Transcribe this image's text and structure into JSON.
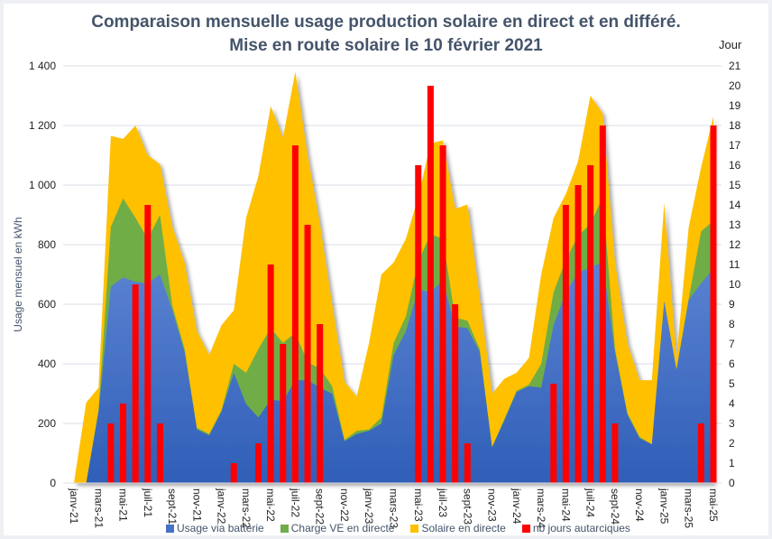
{
  "chart_data": {
    "type": "area",
    "title": "Comparaison mensuelle usage production solaire en direct et en différé.",
    "subtitle": "Mise en route solaire le 10 février 2021",
    "ylabel": "Usage mensuel en kWh",
    "y2label": "Jour",
    "ylim": [
      0,
      1400
    ],
    "y2lim": [
      0,
      21
    ],
    "yticks": [
      "0",
      "200",
      "400",
      "600",
      "800",
      "1 000",
      "1 200",
      "1 400"
    ],
    "y2ticks": [
      "0",
      "1",
      "2",
      "3",
      "4",
      "5",
      "6",
      "7",
      "8",
      "9",
      "10",
      "11",
      "12",
      "13",
      "14",
      "15",
      "16",
      "17",
      "18",
      "19",
      "20",
      "21"
    ],
    "grid": true,
    "legend_position": "bottom",
    "categories": [
      "janv-21",
      "févr-21",
      "mars-21",
      "avr-21",
      "mai-21",
      "juin-21",
      "juil-21",
      "août-21",
      "sept-21",
      "oct-21",
      "nov-21",
      "déc-21",
      "janv-22",
      "févr-22",
      "mars-22",
      "avr-22",
      "mai-22",
      "juin-22",
      "juil-22",
      "août-22",
      "sept-22",
      "oct-22",
      "nov-22",
      "déc-22",
      "janv-23",
      "févr-23",
      "mars-23",
      "avr-23",
      "mai-23",
      "juin-23",
      "juil-23",
      "août-23",
      "sept-23",
      "oct-23",
      "nov-23",
      "déc-23",
      "janv-24",
      "févr-24",
      "mars-24",
      "avr-24",
      "mai-24",
      "juin-24",
      "juil-24",
      "août-24",
      "sept-24",
      "oct-24",
      "nov-24",
      "déc-24",
      "janv-25",
      "févr-25",
      "mars-25",
      "avr-25",
      "mai-25"
    ],
    "tick_labels_shown": [
      "janv-21",
      "mars-21",
      "mai-21",
      "juil-21",
      "sept-21",
      "nov-21",
      "janv-22",
      "mars-22",
      "mai-22",
      "juil-22",
      "sept-22",
      "nov-22",
      "janv-23",
      "mars-23",
      "mai-23",
      "juil-23",
      "sept-23",
      "nov-23",
      "janv-24",
      "mars-24",
      "mai-24",
      "juil-24",
      "sept-24",
      "nov-24",
      "janv-25",
      "mars-25",
      "mai-25"
    ],
    "series": [
      {
        "name": "Usage via batterie",
        "type": "area",
        "axis": "left",
        "color": "#4472c4",
        "values": [
          0,
          0,
          240,
          660,
          690,
          675,
          670,
          700,
          580,
          440,
          180,
          160,
          240,
          370,
          265,
          220,
          280,
          275,
          345,
          345,
          320,
          300,
          140,
          165,
          175,
          200,
          430,
          510,
          650,
          640,
          680,
          525,
          520,
          440,
          120,
          210,
          305,
          325,
          320,
          530,
          640,
          705,
          725,
          740,
          440,
          230,
          150,
          130,
          610,
          380,
          615,
          670,
          720
        ]
      },
      {
        "name": "Charge VE en directe",
        "type": "area",
        "axis": "left",
        "color": "#70ad47",
        "values": [
          0,
          0,
          5,
          200,
          265,
          215,
          150,
          200,
          15,
          10,
          5,
          5,
          5,
          30,
          105,
          230,
          240,
          195,
          160,
          60,
          65,
          25,
          5,
          10,
          5,
          20,
          40,
          50,
          95,
          195,
          140,
          30,
          25,
          10,
          0,
          5,
          5,
          5,
          80,
          110,
          110,
          125,
          145,
          220,
          10,
          5,
          5,
          0,
          0,
          0,
          5,
          175,
          160
        ]
      },
      {
        "name": "Solaire en directe",
        "type": "area",
        "axis": "left",
        "color": "#ffc000",
        "values": [
          0,
          270,
          75,
          305,
          200,
          310,
          280,
          170,
          265,
          290,
          325,
          265,
          285,
          180,
          520,
          580,
          745,
          690,
          875,
          695,
          485,
          275,
          195,
          115,
          290,
          480,
          270,
          260,
          215,
          305,
          330,
          365,
          390,
          170,
          180,
          135,
          60,
          90,
          300,
          250,
          220,
          250,
          430,
          280,
          290,
          235,
          190,
          215,
          330,
          40,
          240,
          215,
          350
        ]
      },
      {
        "name": "nb jours autarciques",
        "type": "bar",
        "axis": "right",
        "color": "#ff0000",
        "values": [
          0,
          0,
          0,
          3,
          4,
          10,
          14,
          3,
          0,
          0,
          0,
          0,
          0,
          1,
          0,
          2,
          11,
          7,
          17,
          13,
          8,
          0,
          0,
          0,
          0,
          0,
          0,
          0,
          16,
          20,
          17,
          9,
          2,
          0,
          0,
          0,
          0,
          0,
          0,
          5,
          14,
          15,
          16,
          18,
          3,
          0,
          0,
          0,
          0,
          0,
          0,
          3,
          18
        ]
      }
    ]
  }
}
